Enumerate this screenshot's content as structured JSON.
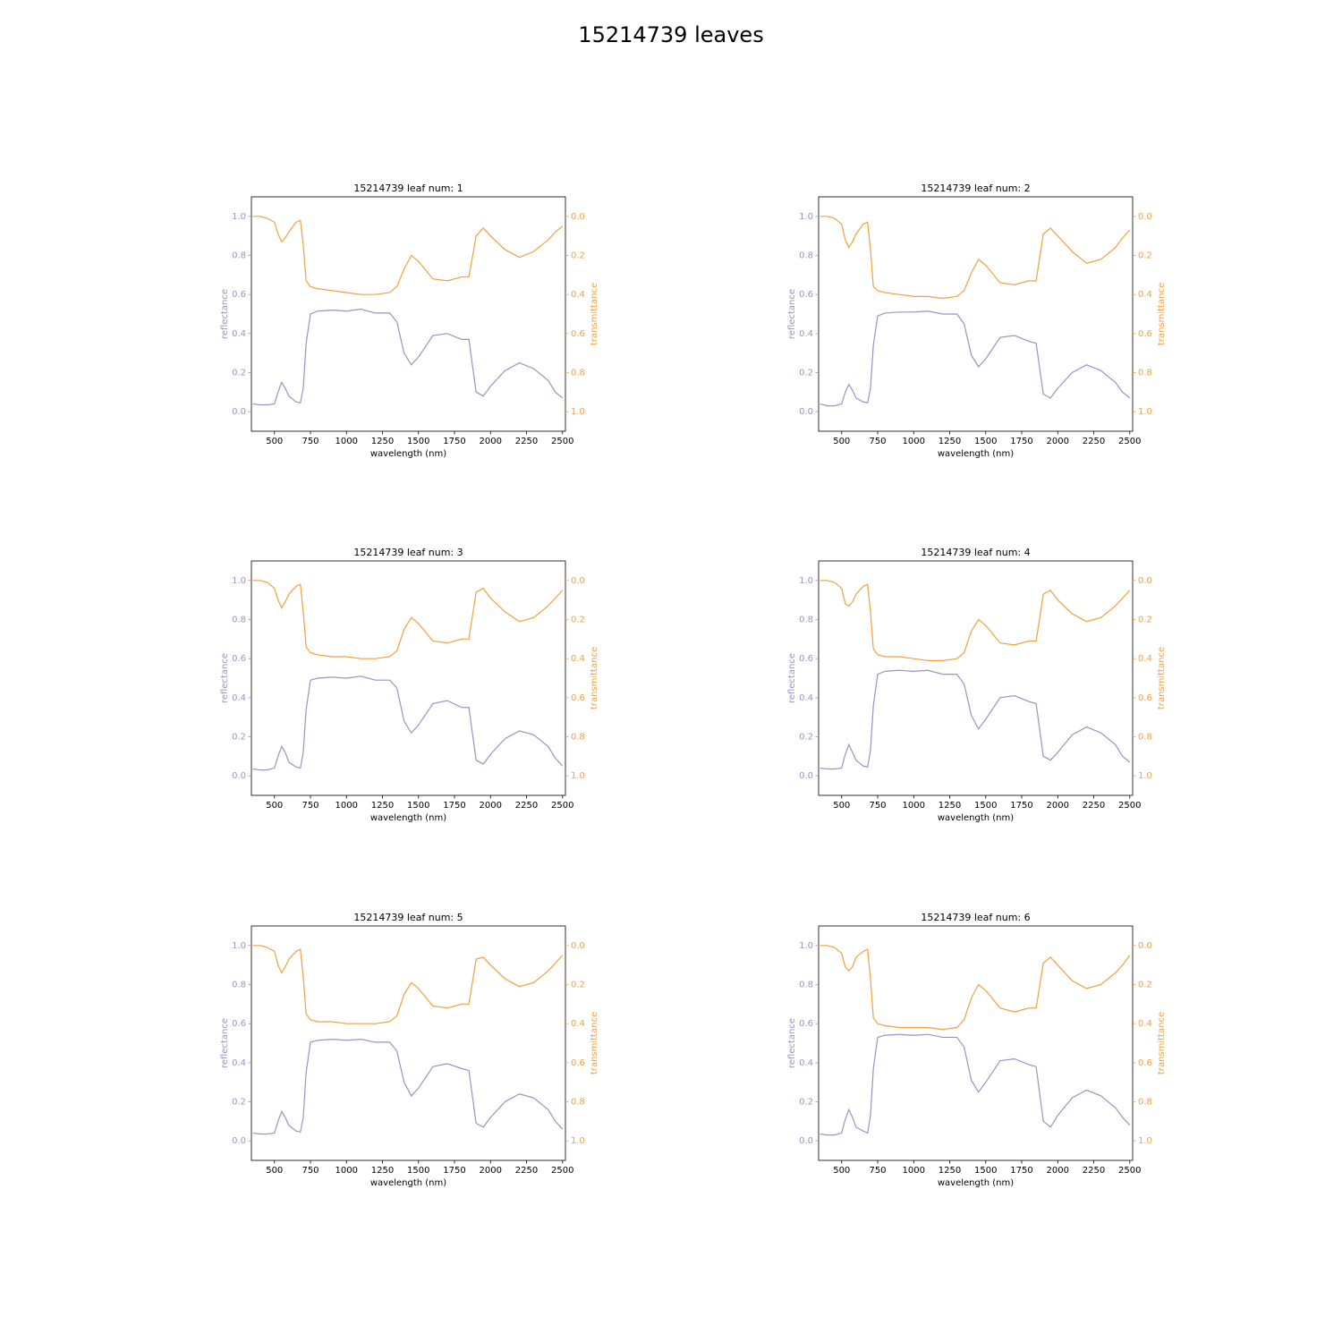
{
  "title": "15214739 leaves",
  "chart_data": [
    {
      "type": "line",
      "title": "15214739 leaf num: 1",
      "xlabel": "wavelength (nm)",
      "ylabel": "reflectance",
      "y2label": "transmittance",
      "x": [
        350,
        400,
        450,
        500,
        525,
        550,
        575,
        600,
        650,
        680,
        700,
        720,
        750,
        800,
        900,
        1000,
        1100,
        1200,
        1300,
        1350,
        1400,
        1450,
        1500,
        1600,
        1700,
        1800,
        1850,
        1900,
        1950,
        2000,
        2100,
        2200,
        2300,
        2400,
        2450,
        2500
      ],
      "xlim": [
        340,
        2520
      ],
      "xticks": [
        500,
        750,
        1000,
        1250,
        1500,
        1750,
        2000,
        2250,
        2500
      ],
      "ylim": [
        -0.1,
        1.1
      ],
      "yticks": [
        {
          "value": 0,
          "label": "0.0"
        },
        0.2,
        0.4,
        0.6,
        0.8,
        {
          "value": 1,
          "label": "1.0"
        }
      ],
      "y2lim": [
        1.1,
        -0.1
      ],
      "y2ticks": [
        {
          "value": 0,
          "label": "0.0"
        },
        0.2,
        0.4,
        0.6,
        0.8,
        {
          "value": 1,
          "label": "1.0"
        }
      ],
      "series": [
        {
          "color": "#9a92c6",
          "values": [
            0.04,
            0.035,
            0.035,
            0.04,
            0.1,
            0.15,
            0.12,
            0.08,
            0.05,
            0.045,
            0.12,
            0.35,
            0.5,
            0.515,
            0.52,
            0.515,
            0.525,
            0.505,
            0.505,
            0.46,
            0.3,
            0.24,
            0.28,
            0.39,
            0.4,
            0.37,
            0.37,
            0.1,
            0.08,
            0.13,
            0.21,
            0.25,
            0.22,
            0.16,
            0.1,
            0.07
          ]
        },
        {
          "color": "#f0a040",
          "axis": "y2",
          "values": [
            0.0,
            0.0,
            0.01,
            0.03,
            0.09,
            0.13,
            0.11,
            0.08,
            0.03,
            0.02,
            0.15,
            0.33,
            0.36,
            0.37,
            0.38,
            0.39,
            0.4,
            0.4,
            0.39,
            0.36,
            0.27,
            0.2,
            0.23,
            0.32,
            0.33,
            0.31,
            0.31,
            0.1,
            0.06,
            0.1,
            0.17,
            0.21,
            0.18,
            0.12,
            0.08,
            0.05
          ]
        }
      ]
    },
    {
      "type": "line",
      "title": "15214739 leaf num: 2",
      "xlabel": "wavelength (nm)",
      "ylabel": "reflectance",
      "y2label": "transmittance",
      "x": [
        350,
        400,
        450,
        500,
        525,
        550,
        575,
        600,
        650,
        680,
        700,
        720,
        750,
        800,
        900,
        1000,
        1100,
        1200,
        1300,
        1350,
        1400,
        1450,
        1500,
        1600,
        1700,
        1800,
        1850,
        1900,
        1950,
        2000,
        2100,
        2200,
        2300,
        2400,
        2450,
        2500
      ],
      "xlim": [
        340,
        2520
      ],
      "xticks": [
        500,
        750,
        1000,
        1250,
        1500,
        1750,
        2000,
        2250,
        2500
      ],
      "ylim": [
        -0.1,
        1.1
      ],
      "yticks": [
        {
          "value": 0,
          "label": "0.0"
        },
        0.2,
        0.4,
        0.6,
        0.8,
        {
          "value": 1,
          "label": "1.0"
        }
      ],
      "y2lim": [
        1.1,
        -0.1
      ],
      "y2ticks": [
        {
          "value": 0,
          "label": "0.0"
        },
        0.2,
        0.4,
        0.6,
        0.8,
        {
          "value": 1,
          "label": "1.0"
        }
      ],
      "series": [
        {
          "color": "#9a92c6",
          "values": [
            0.04,
            0.03,
            0.03,
            0.04,
            0.1,
            0.14,
            0.11,
            0.07,
            0.05,
            0.045,
            0.12,
            0.34,
            0.49,
            0.505,
            0.51,
            0.51,
            0.515,
            0.5,
            0.5,
            0.45,
            0.29,
            0.23,
            0.27,
            0.38,
            0.39,
            0.36,
            0.35,
            0.09,
            0.07,
            0.12,
            0.2,
            0.24,
            0.21,
            0.15,
            0.1,
            0.07
          ]
        },
        {
          "color": "#f0a040",
          "axis": "y2",
          "values": [
            0.0,
            0.0,
            0.01,
            0.04,
            0.12,
            0.16,
            0.13,
            0.09,
            0.04,
            0.03,
            0.17,
            0.36,
            0.38,
            0.39,
            0.4,
            0.41,
            0.41,
            0.42,
            0.41,
            0.38,
            0.29,
            0.22,
            0.25,
            0.34,
            0.35,
            0.33,
            0.33,
            0.09,
            0.06,
            0.1,
            0.18,
            0.24,
            0.22,
            0.16,
            0.11,
            0.07
          ]
        }
      ]
    },
    {
      "type": "line",
      "title": "15214739 leaf num: 3",
      "xlabel": "wavelength (nm)",
      "ylabel": "reflectance",
      "y2label": "transmittance",
      "x": [
        350,
        400,
        450,
        500,
        525,
        550,
        575,
        600,
        650,
        680,
        700,
        720,
        750,
        800,
        900,
        1000,
        1100,
        1200,
        1300,
        1350,
        1400,
        1450,
        1500,
        1600,
        1700,
        1800,
        1850,
        1900,
        1950,
        2000,
        2100,
        2200,
        2300,
        2400,
        2450,
        2500
      ],
      "xlim": [
        340,
        2520
      ],
      "xticks": [
        500,
        750,
        1000,
        1250,
        1500,
        1750,
        2000,
        2250,
        2500
      ],
      "ylim": [
        -0.1,
        1.1
      ],
      "yticks": [
        {
          "value": 0,
          "label": "0.0"
        },
        0.2,
        0.4,
        0.6,
        0.8,
        {
          "value": 1,
          "label": "1.0"
        }
      ],
      "y2lim": [
        1.1,
        -0.1
      ],
      "y2ticks": [
        {
          "value": 0,
          "label": "0.0"
        },
        0.2,
        0.4,
        0.6,
        0.8,
        {
          "value": 1,
          "label": "1.0"
        }
      ],
      "series": [
        {
          "color": "#9a92c6",
          "values": [
            0.035,
            0.03,
            0.03,
            0.04,
            0.1,
            0.15,
            0.12,
            0.07,
            0.045,
            0.04,
            0.12,
            0.34,
            0.49,
            0.5,
            0.505,
            0.5,
            0.51,
            0.49,
            0.49,
            0.45,
            0.28,
            0.22,
            0.26,
            0.37,
            0.385,
            0.35,
            0.35,
            0.08,
            0.06,
            0.11,
            0.19,
            0.23,
            0.21,
            0.15,
            0.09,
            0.05
          ]
        },
        {
          "color": "#f0a040",
          "axis": "y2",
          "values": [
            0.0,
            0.0,
            0.01,
            0.04,
            0.1,
            0.14,
            0.11,
            0.07,
            0.03,
            0.02,
            0.16,
            0.34,
            0.37,
            0.38,
            0.39,
            0.39,
            0.4,
            0.4,
            0.39,
            0.36,
            0.25,
            0.19,
            0.22,
            0.31,
            0.32,
            0.3,
            0.3,
            0.06,
            0.04,
            0.09,
            0.16,
            0.21,
            0.19,
            0.13,
            0.09,
            0.05
          ]
        }
      ]
    },
    {
      "type": "line",
      "title": "15214739 leaf num: 4",
      "xlabel": "wavelength (nm)",
      "ylabel": "reflectance",
      "y2label": "transmittance",
      "x": [
        350,
        400,
        450,
        500,
        525,
        550,
        575,
        600,
        650,
        680,
        700,
        720,
        750,
        800,
        900,
        1000,
        1100,
        1200,
        1300,
        1350,
        1400,
        1450,
        1500,
        1600,
        1700,
        1800,
        1850,
        1900,
        1950,
        2000,
        2100,
        2200,
        2300,
        2400,
        2450,
        2500
      ],
      "xlim": [
        340,
        2520
      ],
      "xticks": [
        500,
        750,
        1000,
        1250,
        1500,
        1750,
        2000,
        2250,
        2500
      ],
      "ylim": [
        -0.1,
        1.1
      ],
      "yticks": [
        {
          "value": 0,
          "label": "0.0"
        },
        0.2,
        0.4,
        0.6,
        0.8,
        {
          "value": 1,
          "label": "1.0"
        }
      ],
      "y2lim": [
        1.1,
        -0.1
      ],
      "y2ticks": [
        {
          "value": 0,
          "label": "0.0"
        },
        0.2,
        0.4,
        0.6,
        0.8,
        {
          "value": 1,
          "label": "1.0"
        }
      ],
      "series": [
        {
          "color": "#9a92c6",
          "values": [
            0.04,
            0.035,
            0.035,
            0.04,
            0.11,
            0.16,
            0.12,
            0.08,
            0.05,
            0.045,
            0.13,
            0.36,
            0.52,
            0.535,
            0.54,
            0.535,
            0.54,
            0.52,
            0.52,
            0.47,
            0.31,
            0.24,
            0.29,
            0.4,
            0.41,
            0.38,
            0.37,
            0.1,
            0.08,
            0.12,
            0.21,
            0.25,
            0.22,
            0.16,
            0.1,
            0.07
          ]
        },
        {
          "color": "#f0a040",
          "axis": "y2",
          "values": [
            0.0,
            0.0,
            0.01,
            0.04,
            0.12,
            0.13,
            0.11,
            0.07,
            0.03,
            0.02,
            0.16,
            0.35,
            0.38,
            0.39,
            0.39,
            0.4,
            0.41,
            0.41,
            0.4,
            0.37,
            0.26,
            0.2,
            0.23,
            0.32,
            0.33,
            0.31,
            0.31,
            0.07,
            0.05,
            0.1,
            0.17,
            0.21,
            0.19,
            0.13,
            0.09,
            0.05
          ]
        }
      ]
    },
    {
      "type": "line",
      "title": "15214739 leaf num: 5",
      "xlabel": "wavelength (nm)",
      "ylabel": "reflectance",
      "y2label": "transmittance",
      "x": [
        350,
        400,
        450,
        500,
        525,
        550,
        575,
        600,
        650,
        680,
        700,
        720,
        750,
        800,
        900,
        1000,
        1100,
        1200,
        1300,
        1350,
        1400,
        1450,
        1500,
        1600,
        1700,
        1800,
        1850,
        1900,
        1950,
        2000,
        2100,
        2200,
        2300,
        2400,
        2450,
        2500
      ],
      "xlim": [
        340,
        2520
      ],
      "xticks": [
        500,
        750,
        1000,
        1250,
        1500,
        1750,
        2000,
        2250,
        2500
      ],
      "ylim": [
        -0.1,
        1.1
      ],
      "yticks": [
        {
          "value": 0,
          "label": "0.0"
        },
        0.2,
        0.4,
        0.6,
        0.8,
        {
          "value": 1,
          "label": "1.0"
        }
      ],
      "y2lim": [
        1.1,
        -0.1
      ],
      "y2ticks": [
        {
          "value": 0,
          "label": "0.0"
        },
        0.2,
        0.4,
        0.6,
        0.8,
        {
          "value": 1,
          "label": "1.0"
        }
      ],
      "series": [
        {
          "color": "#9a92c6",
          "values": [
            0.04,
            0.035,
            0.035,
            0.04,
            0.1,
            0.15,
            0.12,
            0.08,
            0.05,
            0.045,
            0.12,
            0.35,
            0.505,
            0.515,
            0.52,
            0.515,
            0.52,
            0.505,
            0.505,
            0.46,
            0.3,
            0.23,
            0.27,
            0.38,
            0.395,
            0.37,
            0.36,
            0.09,
            0.07,
            0.12,
            0.2,
            0.24,
            0.22,
            0.16,
            0.1,
            0.06
          ]
        },
        {
          "color": "#f0a040",
          "axis": "y2",
          "values": [
            0.0,
            0.0,
            0.01,
            0.03,
            0.1,
            0.14,
            0.11,
            0.07,
            0.03,
            0.02,
            0.16,
            0.35,
            0.38,
            0.39,
            0.39,
            0.4,
            0.4,
            0.4,
            0.39,
            0.36,
            0.25,
            0.19,
            0.22,
            0.31,
            0.32,
            0.3,
            0.3,
            0.07,
            0.06,
            0.1,
            0.17,
            0.21,
            0.19,
            0.13,
            0.09,
            0.05
          ]
        }
      ]
    },
    {
      "type": "line",
      "title": "15214739 leaf num: 6",
      "xlabel": "wavelength (nm)",
      "ylabel": "reflectance",
      "y2label": "transmittance",
      "x": [
        350,
        400,
        450,
        500,
        525,
        550,
        575,
        600,
        650,
        680,
        700,
        720,
        750,
        800,
        900,
        1000,
        1100,
        1200,
        1300,
        1350,
        1400,
        1450,
        1500,
        1600,
        1700,
        1800,
        1850,
        1900,
        1950,
        2000,
        2100,
        2200,
        2300,
        2400,
        2450,
        2500
      ],
      "xlim": [
        340,
        2520
      ],
      "xticks": [
        500,
        750,
        1000,
        1250,
        1500,
        1750,
        2000,
        2250,
        2500
      ],
      "ylim": [
        -0.1,
        1.1
      ],
      "yticks": [
        {
          "value": 0,
          "label": "0.0"
        },
        0.2,
        0.4,
        0.6,
        0.8,
        {
          "value": 1,
          "label": "1.0"
        }
      ],
      "y2lim": [
        1.1,
        -0.1
      ],
      "y2ticks": [
        {
          "value": 0,
          "label": "0.0"
        },
        0.2,
        0.4,
        0.6,
        0.8,
        {
          "value": 1,
          "label": "1.0"
        }
      ],
      "series": [
        {
          "color": "#9a92c6",
          "values": [
            0.035,
            0.03,
            0.03,
            0.04,
            0.11,
            0.16,
            0.12,
            0.07,
            0.05,
            0.04,
            0.13,
            0.37,
            0.53,
            0.54,
            0.545,
            0.54,
            0.545,
            0.53,
            0.53,
            0.48,
            0.31,
            0.25,
            0.3,
            0.41,
            0.42,
            0.39,
            0.38,
            0.1,
            0.07,
            0.13,
            0.22,
            0.26,
            0.23,
            0.17,
            0.12,
            0.08
          ]
        },
        {
          "color": "#f0a040",
          "axis": "y2",
          "values": [
            0.0,
            0.0,
            0.01,
            0.04,
            0.11,
            0.13,
            0.11,
            0.06,
            0.03,
            0.02,
            0.17,
            0.37,
            0.4,
            0.41,
            0.42,
            0.42,
            0.42,
            0.43,
            0.42,
            0.38,
            0.27,
            0.2,
            0.23,
            0.32,
            0.34,
            0.32,
            0.32,
            0.09,
            0.06,
            0.1,
            0.18,
            0.22,
            0.2,
            0.14,
            0.1,
            0.05
          ]
        }
      ]
    }
  ]
}
